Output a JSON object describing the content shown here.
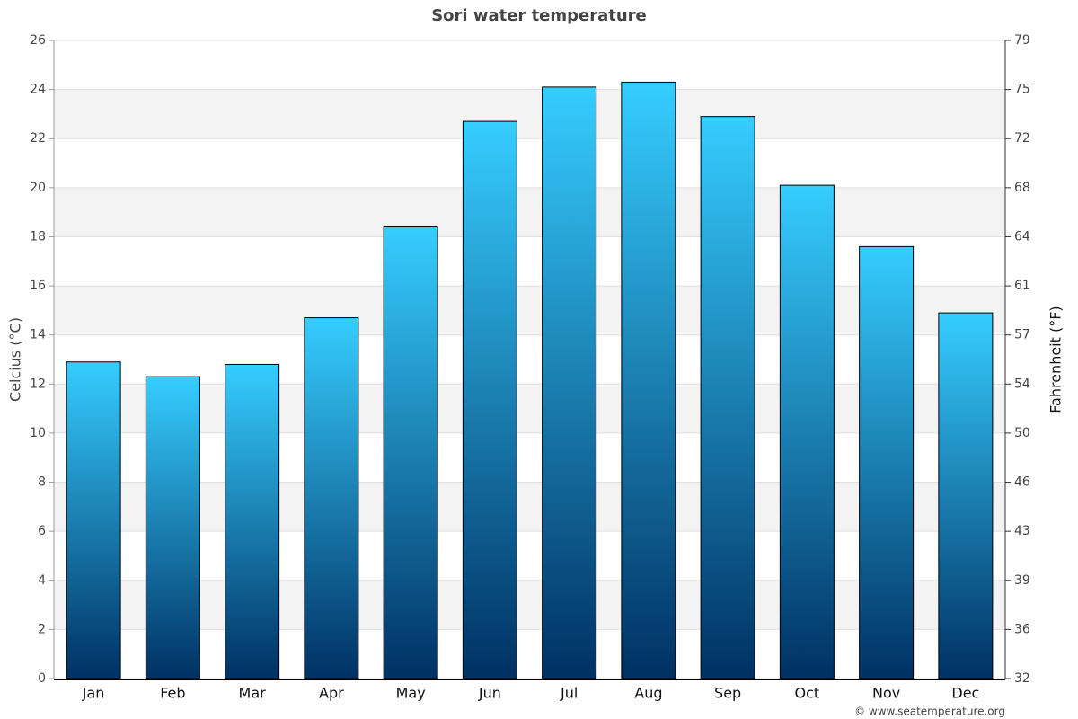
{
  "chart_data": {
    "type": "bar",
    "title": "Sori water temperature",
    "categories": [
      "Jan",
      "Feb",
      "Mar",
      "Apr",
      "May",
      "Jun",
      "Jul",
      "Aug",
      "Sep",
      "Oct",
      "Nov",
      "Dec"
    ],
    "values": [
      12.9,
      12.3,
      12.8,
      14.7,
      18.4,
      22.7,
      24.1,
      24.3,
      22.9,
      20.1,
      17.6,
      14.9
    ],
    "gradient": [
      "#36cdff",
      "#003163"
    ],
    "ylabel": "Celcius (°C)",
    "y2label": "Fahrenheit (°F)",
    "ylim": [
      0,
      26
    ],
    "yticks": [
      0,
      2,
      4,
      6,
      8,
      10,
      12,
      14,
      16,
      18,
      20,
      22,
      24,
      26
    ],
    "y2lim": [
      32,
      78.8
    ],
    "y2ticks": [
      32,
      {
        "value": 35.6,
        "label": "36"
      },
      {
        "value": 39.2,
        "label": "39"
      },
      {
        "value": 42.8,
        "label": "43"
      },
      {
        "value": 46.4,
        "label": "46"
      },
      50,
      {
        "value": 53.6,
        "label": "54"
      },
      {
        "value": 57.2,
        "label": "57"
      },
      {
        "value": 60.8,
        "label": "61"
      },
      {
        "value": 64.4,
        "label": "64"
      },
      68,
      {
        "value": 71.6,
        "label": "72"
      },
      {
        "value": 75.2,
        "label": "75"
      },
      {
        "value": 78.8,
        "label": "79"
      }
    ],
    "grid": true,
    "source": "© www.seatemperature.org"
  }
}
